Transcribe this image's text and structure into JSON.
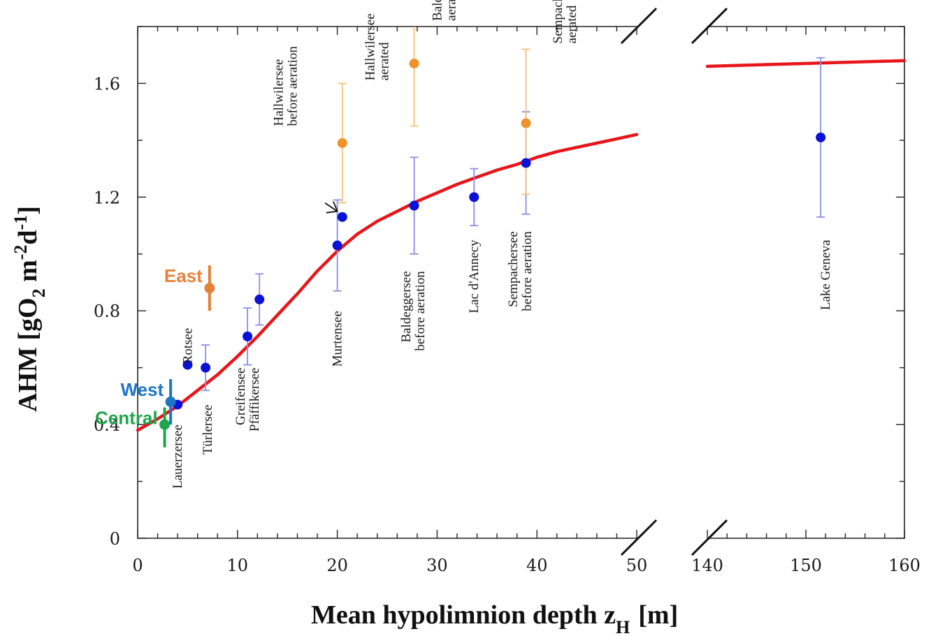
{
  "chart_data": {
    "type": "scatter",
    "title": "",
    "xlabel": "Mean hypolimnion depth z",
    "xlabel_sub": "H",
    "xlabel_unit": "[m]",
    "ylabel": "AHM  [gO",
    "ylabel_sub": "2",
    "ylabel_mid": " m",
    "ylabel_sup1": "-2",
    "ylabel_mid2": "d",
    "ylabel_sup2": "-1",
    "ylabel_end": "]",
    "x_broken_axis": true,
    "x_segments": [
      [
        0,
        50
      ],
      [
        140,
        160
      ]
    ],
    "ylim": [
      0,
      1.8
    ],
    "x_ticks_left": [
      "0",
      "10",
      "20",
      "30",
      "40",
      "50"
    ],
    "x_ticks_right": [
      "140",
      "150",
      "160"
    ],
    "y_ticks": [
      "0",
      "0.4",
      "0.8",
      "1.2",
      "1.6"
    ],
    "grid": false,
    "colors": {
      "before": "#0b12d8",
      "aerated": "#f0922b",
      "fit": "#e8151b",
      "errorbar_blue": "#8a8fe6",
      "errorbar_orange": "#f4c17a",
      "east": "#e5823a",
      "west": "#1f76c4",
      "central": "#1ea64b"
    },
    "series": [
      {
        "key": "before",
        "points": [
          {
            "label": "Lauerzersee",
            "x": 4.0,
            "y": 0.47,
            "err": null
          },
          {
            "label": "Rotsee",
            "x": 5.0,
            "y": 0.61,
            "err": null
          },
          {
            "label": "Türlersee",
            "x": 6.8,
            "y": 0.6,
            "err": [
              0.52,
              0.68
            ]
          },
          {
            "label": "Greifensee",
            "x": 11.0,
            "y": 0.71,
            "err": [
              0.61,
              0.81
            ]
          },
          {
            "label": "Pfäffikersee",
            "x": 12.2,
            "y": 0.84,
            "err": [
              0.75,
              0.93
            ]
          },
          {
            "label": "Murtensee",
            "x": 20.0,
            "y": 1.03,
            "err": [
              0.87,
              1.19
            ]
          },
          {
            "label": "Hallwilersee before aeration",
            "x": 20.5,
            "y": 1.13,
            "err": null
          },
          {
            "label": "Baldeggersee before aeration",
            "x": 27.7,
            "y": 1.17,
            "err": [
              1.0,
              1.34
            ]
          },
          {
            "label": "Lac d'Annecy",
            "x": 33.7,
            "y": 1.2,
            "err": [
              1.1,
              1.3
            ]
          },
          {
            "label": "Sempachersee before aeration",
            "x": 38.9,
            "y": 1.32,
            "err": [
              1.14,
              1.5
            ]
          },
          {
            "label": "Lake Geneva",
            "x": 151.5,
            "y": 1.41,
            "err": [
              1.13,
              1.69
            ]
          }
        ]
      },
      {
        "key": "aerated",
        "points": [
          {
            "label": "Hallwilersee aerated",
            "x": 20.5,
            "y": 1.39,
            "err": [
              1.18,
              1.6
            ]
          },
          {
            "label": "Baldeggersee aerated",
            "x": 27.7,
            "y": 1.67,
            "err": [
              1.45,
              1.8
            ]
          },
          {
            "label": "Sempachersee aerated",
            "x": 38.9,
            "y": 1.46,
            "err": [
              1.21,
              1.72
            ]
          }
        ]
      }
    ],
    "fit_curve": {
      "left": [
        [
          0,
          0.38
        ],
        [
          2,
          0.42
        ],
        [
          4,
          0.465
        ],
        [
          6,
          0.52
        ],
        [
          8,
          0.575
        ],
        [
          10,
          0.64
        ],
        [
          12,
          0.71
        ],
        [
          14,
          0.785
        ],
        [
          16,
          0.86
        ],
        [
          18,
          0.94
        ],
        [
          20,
          1.01
        ],
        [
          22,
          1.07
        ],
        [
          24,
          1.115
        ],
        [
          26,
          1.15
        ],
        [
          28,
          1.185
        ],
        [
          30,
          1.215
        ],
        [
          32,
          1.245
        ],
        [
          34,
          1.27
        ],
        [
          36,
          1.295
        ],
        [
          38,
          1.315
        ],
        [
          40,
          1.34
        ],
        [
          42,
          1.36
        ],
        [
          44,
          1.375
        ],
        [
          46,
          1.39
        ],
        [
          48,
          1.405
        ],
        [
          50,
          1.42
        ]
      ],
      "right": [
        [
          140,
          1.66
        ],
        [
          150,
          1.67
        ],
        [
          160,
          1.68
        ]
      ]
    },
    "region_markers": [
      {
        "label": "East",
        "color_key": "east",
        "x": 7.2,
        "y": 0.88,
        "range": [
          0.8,
          0.96
        ],
        "has_point": true
      },
      {
        "label": "West",
        "color_key": "west",
        "x": 3.3,
        "y": 0.48,
        "range": [
          0.4,
          0.56
        ],
        "has_point": true
      },
      {
        "label": "Central",
        "color_key": "central",
        "x": 2.7,
        "y": 0.4,
        "range": [
          0.32,
          0.46
        ],
        "has_point": true
      }
    ],
    "lake_labels": [
      {
        "text": [
          "Lauerzersee"
        ],
        "x": 4.0,
        "y": 0.4,
        "anchor": "end"
      },
      {
        "text": [
          "Rotsee"
        ],
        "x": 5.0,
        "y": 0.74,
        "anchor": "end"
      },
      {
        "text": [
          "Türlersee"
        ],
        "x": 7.0,
        "y": 0.47,
        "anchor": "end"
      },
      {
        "text": [
          "Greifensee",
          "Pfäffikersee"
        ],
        "x": 11.0,
        "y": 0.6,
        "anchor": "end"
      },
      {
        "text": [
          "Murtensee"
        ],
        "x": 20.0,
        "y": 0.8,
        "anchor": "end"
      },
      {
        "text": [
          "Hallwilersee",
          "before aeration"
        ],
        "x": 14.8,
        "y": 1.45,
        "anchor": "start",
        "arrow": true
      },
      {
        "text": [
          "Hallwilersee",
          "aerated"
        ],
        "x": 24.0,
        "y": 1.61,
        "anchor": "start"
      },
      {
        "text": [
          "Baldeggersee",
          "before aeration"
        ],
        "x": 27.6,
        "y": 0.94,
        "anchor": "end"
      },
      {
        "text": [
          "Baldeggersee",
          "aerated"
        ],
        "x": 30.7,
        "y": 1.82,
        "anchor": "start"
      },
      {
        "text": [
          "Lac d'Annecy"
        ],
        "x": 33.7,
        "y": 1.05,
        "anchor": "end"
      },
      {
        "text": [
          "Sempachersee",
          "before aeration"
        ],
        "x": 38.3,
        "y": 1.08,
        "anchor": "end"
      },
      {
        "text": [
          "Sempachersee",
          "aerated"
        ],
        "x": 42.8,
        "y": 1.74,
        "anchor": "start"
      },
      {
        "text": [
          "Lake Geneva"
        ],
        "x": 152.0,
        "y": 1.05,
        "anchor": "end"
      }
    ]
  }
}
